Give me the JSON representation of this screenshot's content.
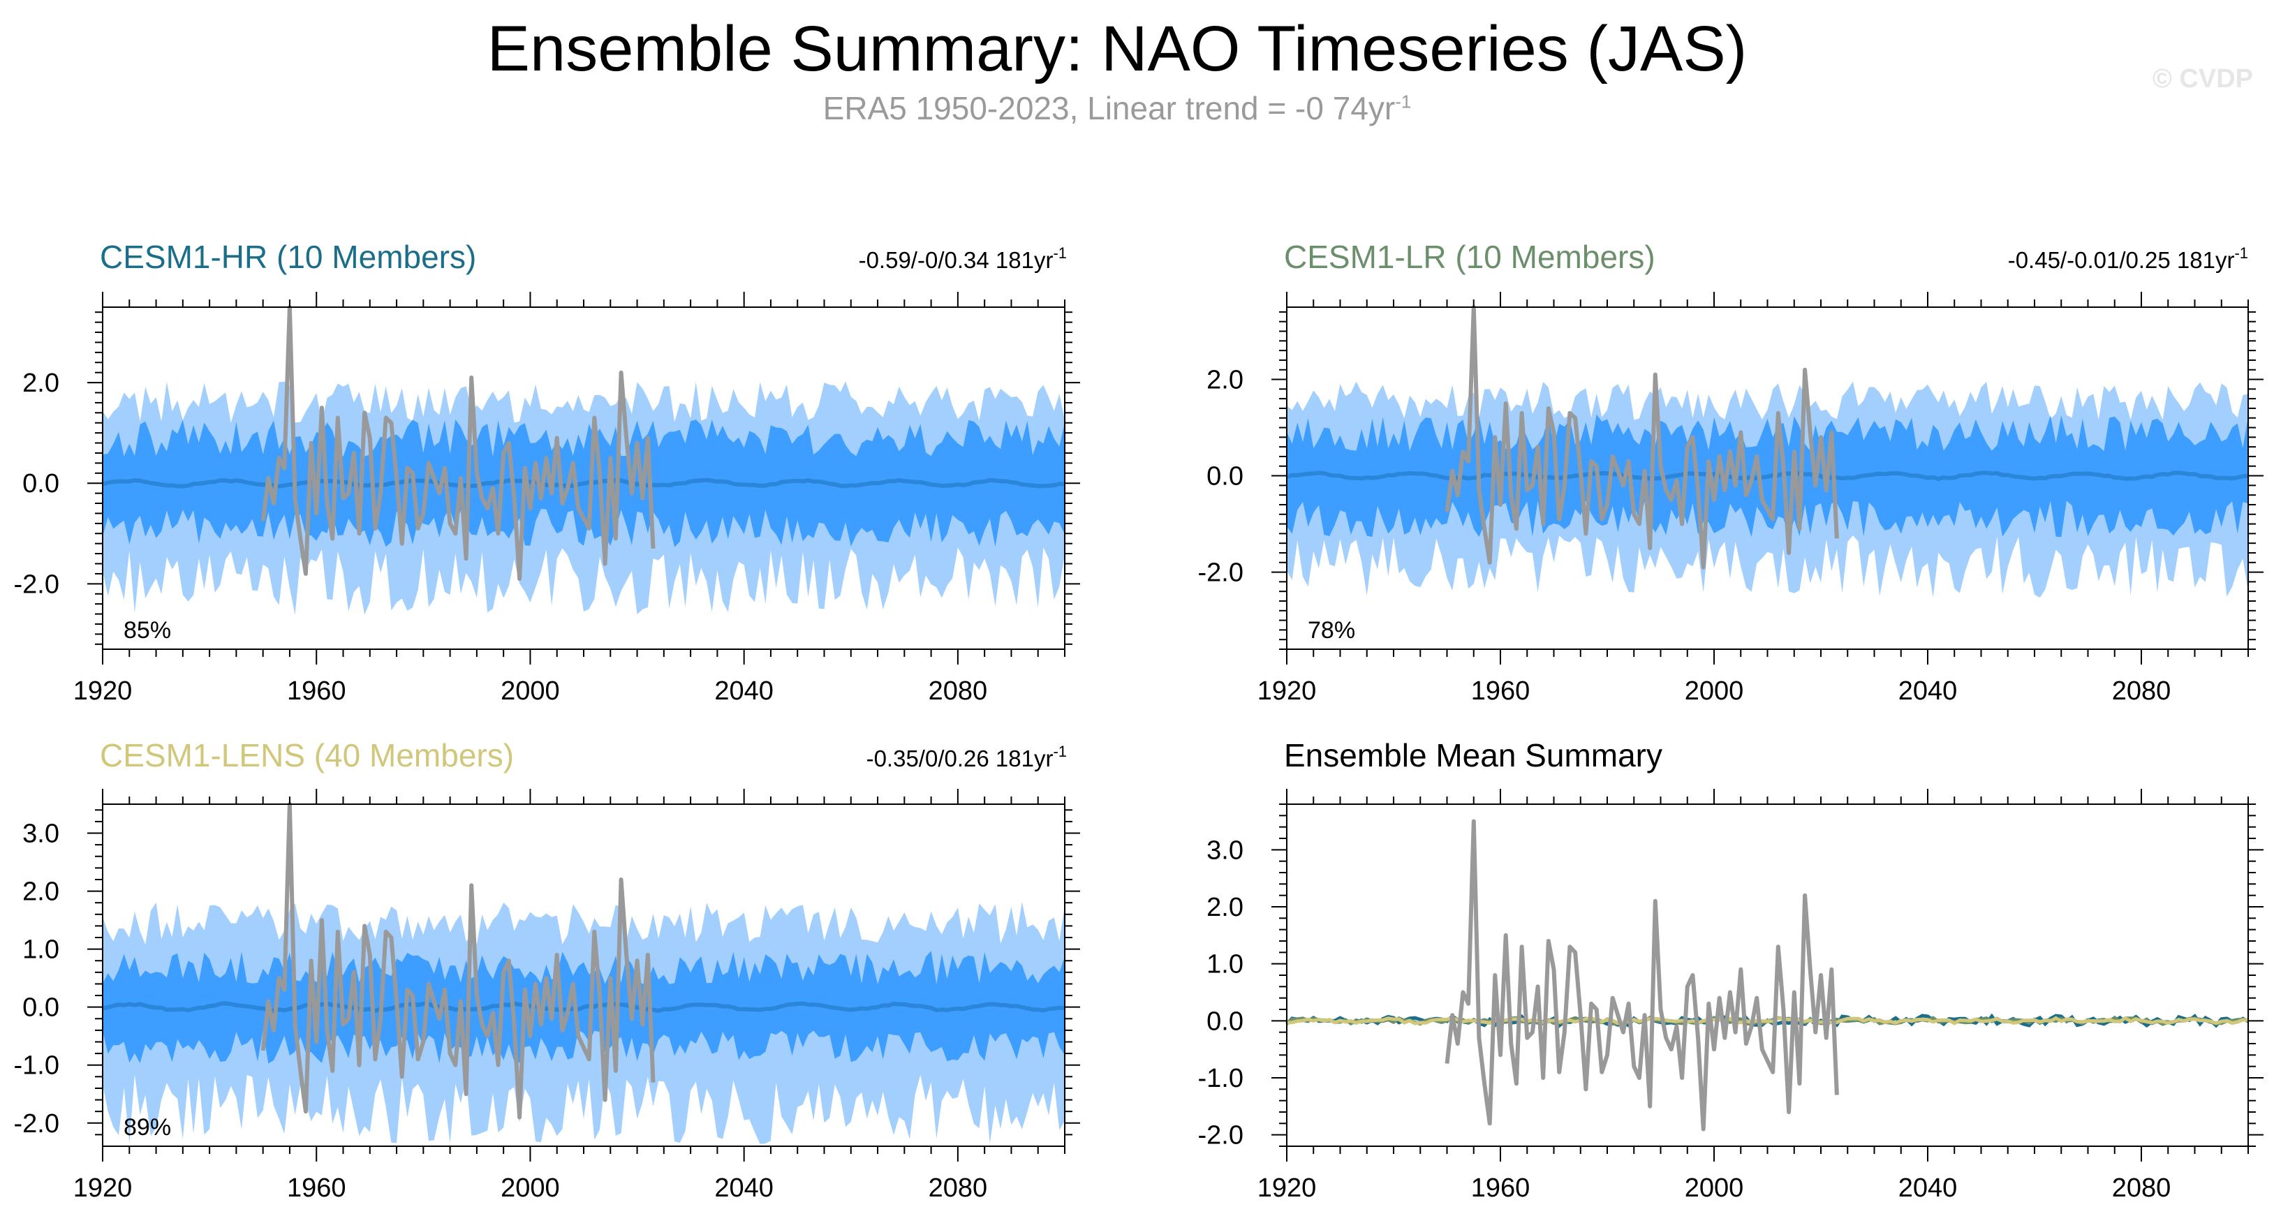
{
  "title": "Ensemble Summary: NAO Timeseries (JAS)",
  "subtitle_main": "ERA5 1950-2023, Linear trend = -0 74yr",
  "subtitle_sup": "-1",
  "copyright": "© CVDP",
  "colors": {
    "hr": "#1b6e8a",
    "lr": "#6b8f6b",
    "lens": "#d1c77a",
    "obs": "#999999",
    "outer_band": "#a3cfff",
    "inner_band": "#3d9eff",
    "mean_line": "#2b86d9"
  },
  "chart_data": [
    {
      "type": "area",
      "id": "hr",
      "title": "CESM1-HR (10 Members)",
      "stat_text": "-0.59/-0/0.34 181yr",
      "stat_sup": "-1",
      "percent_label": "85%",
      "xlim": [
        1920,
        2100
      ],
      "ylim": [
        -3.3,
        3.5
      ],
      "xticks": [
        1920,
        1960,
        2000,
        2040,
        2080
      ],
      "yticks": [
        -2.0,
        0.0,
        2.0
      ],
      "ytick_labels": [
        "-2.0",
        "0.0",
        "2.0"
      ],
      "outer_amp": 1.5,
      "inner_amp": 0.85,
      "seed": 11
    },
    {
      "type": "area",
      "id": "lr",
      "title": "CESM1-LR (10 Members)",
      "stat_text": "-0.45/-0.01/0.25 181yr",
      "stat_sup": "-1",
      "percent_label": "78%",
      "xlim": [
        1920,
        2100
      ],
      "ylim": [
        -3.6,
        3.5
      ],
      "xticks": [
        1920,
        1960,
        2000,
        2040,
        2080
      ],
      "yticks": [
        -2.0,
        0.0,
        2.0
      ],
      "ytick_labels": [
        "-2.0",
        "0.0",
        "2.0"
      ],
      "outer_amp": 1.45,
      "inner_amp": 0.85,
      "seed": 23
    },
    {
      "type": "area",
      "id": "lens",
      "title": "CESM1-LENS (40 Members)",
      "stat_text": "-0.35/0/0.26 181yr",
      "stat_sup": "-1",
      "percent_label": "89%",
      "xlim": [
        1920,
        2100
      ],
      "ylim": [
        -2.4,
        3.5
      ],
      "xticks": [
        1920,
        1960,
        2000,
        2040,
        2080
      ],
      "yticks": [
        -2.0,
        -1.0,
        0.0,
        1.0,
        2.0,
        3.0
      ],
      "ytick_labels": [
        "-2.0",
        "-1.0",
        "0.0",
        "1.0",
        "2.0",
        "3.0"
      ],
      "outer_amp": 1.35,
      "inner_amp": 0.65,
      "seed": 37
    },
    {
      "type": "line",
      "id": "mean",
      "title": "Ensemble Mean Summary",
      "xlim": [
        1920,
        2100
      ],
      "ylim": [
        -2.2,
        3.8
      ],
      "xticks": [
        1920,
        1960,
        2000,
        2040,
        2080
      ],
      "yticks": [
        -2.0,
        -1.0,
        0.0,
        1.0,
        2.0,
        3.0
      ],
      "ytick_labels": [
        "-2.0",
        "-1.0",
        "0.0",
        "1.0",
        "2.0",
        "3.0"
      ],
      "series": [
        {
          "color_key": "hr",
          "seed": 51,
          "amp": 0.07
        },
        {
          "color_key": "lr",
          "seed": 63,
          "amp": 0.04
        },
        {
          "color_key": "lens",
          "seed": 77,
          "amp": 0.03
        }
      ]
    }
  ],
  "obs_series": {
    "x_start": 1950,
    "y": [
      -0.75,
      0.1,
      -0.4,
      0.5,
      0.3,
      3.5,
      -0.3,
      -1.1,
      -1.8,
      0.8,
      -0.6,
      1.5,
      -0.4,
      -1.1,
      1.3,
      -0.3,
      -0.2,
      0.6,
      -1.0,
      1.4,
      0.9,
      -0.9,
      -0.2,
      1.3,
      1.2,
      0.1,
      -1.2,
      0.3,
      0.2,
      -0.9,
      -0.6,
      0.4,
      0.1,
      -0.2,
      0.3,
      -0.8,
      -1.0,
      0.1,
      -1.5,
      2.1,
      0.2,
      -0.3,
      -0.5,
      -0.1,
      -1.0,
      0.6,
      0.8,
      -0.3,
      -1.9,
      0.3,
      -0.5,
      0.4,
      -0.3,
      0.5,
      -0.2,
      0.9,
      -0.4,
      -0.1,
      0.4,
      -0.5,
      -0.7,
      -0.9,
      1.3,
      0.2,
      -1.6,
      0.5,
      -1.1,
      2.2,
      0.9,
      -0.2,
      0.8,
      -0.3,
      0.9,
      -1.3
    ]
  }
}
